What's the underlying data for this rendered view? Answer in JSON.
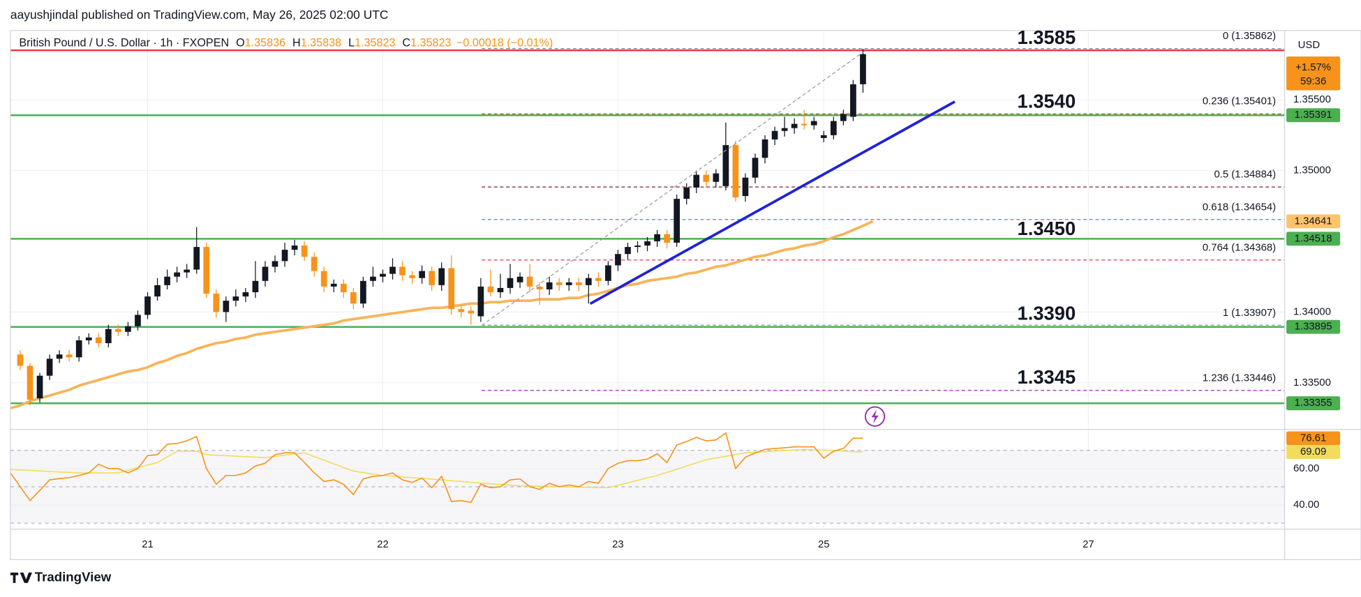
{
  "header": {
    "publisher": "aayushjindal published on TradingView.com, May 26, 2025 02:00 UTC"
  },
  "branding": "TradingView",
  "chart_data": {
    "type": "candlestick",
    "legend": {
      "symbol": "British Pound / U.S. Dollar · 1h · FXOPEN",
      "fields": [
        {
          "key": "O",
          "value": "1.35836"
        },
        {
          "key": "H",
          "value": "1.35838"
        },
        {
          "key": "L",
          "value": "1.35823"
        },
        {
          "key": "C",
          "value": "1.35823"
        }
      ],
      "change": "−0.00018 (−0.01%)"
    },
    "currency": "USD",
    "categories": [
      null,
      null,
      null,
      null,
      null,
      null,
      null,
      null,
      null,
      null,
      null,
      null,
      null,
      null,
      "21",
      null,
      null,
      null,
      null,
      null,
      null,
      null,
      null,
      null,
      null,
      null,
      null,
      null,
      null,
      null,
      null,
      null,
      null,
      null,
      null,
      null,
      null,
      null,
      "22",
      null,
      null,
      null,
      null,
      null,
      null,
      null,
      null,
      null,
      null,
      null,
      null,
      null,
      null,
      null,
      null,
      null,
      null,
      null,
      null,
      null,
      null,
      null,
      "23",
      null,
      null,
      null,
      null,
      null,
      null,
      null,
      null,
      null,
      null,
      null,
      null,
      null,
      null,
      null,
      null,
      null,
      null,
      null,
      null,
      "25",
      null,
      null,
      null,
      null,
      null,
      null,
      null,
      null,
      null,
      null,
      null,
      null,
      null,
      null,
      null,
      null,
      null,
      null,
      null,
      null,
      null,
      null,
      null,
      null,
      null,
      null,
      "27"
    ],
    "ohlc": [
      null,
      [
        1.337,
        1.3373,
        1.3359,
        1.3362
      ],
      [
        1.3362,
        1.3364,
        1.3334,
        1.3338
      ],
      [
        1.3339,
        1.3357,
        1.3336,
        1.3355
      ],
      [
        1.3355,
        1.337,
        1.3352,
        1.3367
      ],
      [
        1.3367,
        1.3373,
        1.3364,
        1.337
      ],
      [
        1.337,
        1.3373,
        1.3365,
        1.3368
      ],
      [
        1.3368,
        1.3383,
        1.3365,
        1.338
      ],
      [
        1.338,
        1.3385,
        1.3377,
        1.3382
      ],
      [
        1.3382,
        1.3385,
        1.3375,
        1.3378
      ],
      [
        1.3378,
        1.3391,
        1.3375,
        1.3388
      ],
      [
        1.3388,
        1.3391,
        1.3383,
        1.3386
      ],
      [
        1.3386,
        1.3393,
        1.3383,
        1.339
      ],
      [
        1.339,
        1.3401,
        1.3387,
        1.3398
      ],
      [
        1.3398,
        1.3414,
        1.3395,
        1.3411
      ],
      [
        1.3411,
        1.3424,
        1.3408,
        1.3419
      ],
      [
        1.3419,
        1.343,
        1.3416,
        1.3425
      ],
      [
        1.3425,
        1.3432,
        1.3421,
        1.3428
      ],
      [
        1.3428,
        1.3434,
        1.3424,
        1.343
      ],
      [
        1.343,
        1.346,
        1.3427,
        1.3446
      ],
      [
        1.3446,
        1.3449,
        1.341,
        1.3413
      ],
      [
        1.3413,
        1.3416,
        1.3396,
        1.34
      ],
      [
        1.34,
        1.3411,
        1.3393,
        1.3408
      ],
      [
        1.3408,
        1.3416,
        1.3404,
        1.3411
      ],
      [
        1.3411,
        1.3417,
        1.3407,
        1.3414
      ],
      [
        1.3414,
        1.3436,
        1.341,
        1.3422
      ],
      [
        1.3422,
        1.3436,
        1.3418,
        1.3432
      ],
      [
        1.3432,
        1.344,
        1.3428,
        1.3436
      ],
      [
        1.3436,
        1.3449,
        1.3432,
        1.3444
      ],
      [
        1.3444,
        1.3451,
        1.344,
        1.3447
      ],
      [
        1.3447,
        1.345,
        1.3436,
        1.3439
      ],
      [
        1.3439,
        1.3442,
        1.3425,
        1.3429
      ],
      [
        1.3429,
        1.3432,
        1.3414,
        1.3418
      ],
      [
        1.3418,
        1.3423,
        1.3414,
        1.342
      ],
      [
        1.342,
        1.3423,
        1.341,
        1.3414
      ],
      [
        1.3414,
        1.3417,
        1.3402,
        1.3406
      ],
      [
        1.3406,
        1.3425,
        1.3403,
        1.3422
      ],
      [
        1.3422,
        1.3432,
        1.3418,
        1.3425
      ],
      [
        1.3425,
        1.343,
        1.3421,
        1.3427
      ],
      [
        1.3427,
        1.3438,
        1.3423,
        1.3432
      ],
      [
        1.3432,
        1.3436,
        1.3422,
        1.3426
      ],
      [
        1.3426,
        1.3429,
        1.342,
        1.3424
      ],
      [
        1.3424,
        1.3433,
        1.342,
        1.3429
      ],
      [
        1.3429,
        1.3432,
        1.3415,
        1.3419
      ],
      [
        1.3419,
        1.3435,
        1.3415,
        1.3431
      ],
      [
        1.3431,
        1.344,
        1.3398,
        1.3402
      ],
      [
        1.3402,
        1.3405,
        1.3396,
        1.34
      ],
      [
        1.3401,
        1.3404,
        1.3391,
        1.3399
      ],
      [
        1.3397,
        1.3424,
        1.3393,
        1.3418
      ],
      [
        1.3418,
        1.343,
        1.3411,
        1.3414
      ],
      [
        1.3414,
        1.3427,
        1.341,
        1.3417
      ],
      [
        1.3417,
        1.3434,
        1.3413,
        1.3424
      ],
      [
        1.3421,
        1.3428,
        1.3417,
        1.3425
      ],
      [
        1.3425,
        1.3434,
        1.3414,
        1.3418
      ],
      [
        1.3418,
        1.3421,
        1.3405,
        1.3416
      ],
      [
        1.3416,
        1.3425,
        1.3412,
        1.3421
      ],
      [
        1.3421,
        1.3424,
        1.3415,
        1.3419
      ],
      [
        1.3419,
        1.3424,
        1.3415,
        1.3421
      ],
      [
        1.3421,
        1.3424,
        1.3415,
        1.3419
      ],
      [
        1.3419,
        1.3427,
        1.3406,
        1.3424
      ],
      [
        1.3424,
        1.3428,
        1.3418,
        1.3422
      ],
      [
        1.3422,
        1.3436,
        1.3419,
        1.3433
      ],
      [
        1.3433,
        1.3444,
        1.3429,
        1.3441
      ],
      [
        1.3441,
        1.3449,
        1.3437,
        1.3446
      ],
      [
        1.3446,
        1.345,
        1.3442,
        1.3447
      ],
      [
        1.3447,
        1.3453,
        1.3443,
        1.345
      ],
      [
        1.345,
        1.3458,
        1.3446,
        1.3455
      ],
      [
        1.3455,
        1.3458,
        1.3445,
        1.3449
      ],
      [
        1.3449,
        1.3483,
        1.3446,
        1.348
      ],
      [
        1.348,
        1.3491,
        1.3476,
        1.3488
      ],
      [
        1.3488,
        1.35,
        1.3484,
        1.3497
      ],
      [
        1.3497,
        1.35,
        1.3488,
        1.3492
      ],
      [
        1.3492,
        1.3501,
        1.3488,
        1.3498
      ],
      [
        1.3489,
        1.3534,
        1.3486,
        1.3518
      ],
      [
        1.3518,
        1.3521,
        1.3478,
        1.3481
      ],
      [
        1.3482,
        1.3498,
        1.3478,
        1.3495
      ],
      [
        1.3495,
        1.3512,
        1.3491,
        1.3509
      ],
      [
        1.3509,
        1.3525,
        1.3505,
        1.3522
      ],
      [
        1.3522,
        1.3531,
        1.3518,
        1.3528
      ],
      [
        1.3528,
        1.3538,
        1.3524,
        1.353
      ],
      [
        1.353,
        1.3537,
        1.3526,
        1.3533
      ],
      [
        1.3533,
        1.3543,
        1.3529,
        1.3532
      ],
      [
        1.3532,
        1.3538,
        1.3529,
        1.3535
      ],
      [
        1.3523,
        1.3528,
        1.352,
        1.3525
      ],
      [
        1.3525,
        1.3538,
        1.3522,
        1.3535
      ],
      [
        1.3535,
        1.3543,
        1.3532,
        1.354
      ],
      [
        1.3538,
        1.3564,
        1.3535,
        1.3561
      ],
      [
        1.3561,
        1.3586,
        1.3555,
        1.35823
      ],
      null,
      null,
      null,
      null,
      null,
      null,
      null,
      null,
      null,
      null,
      null,
      null,
      null,
      null,
      null,
      null,
      null,
      null,
      null,
      null,
      null,
      null,
      null
    ],
    "up_color": "#131722",
    "down_color": "#f7931a",
    "ylim": [
      1.3317,
      1.3599
    ],
    "yticks": [
      {
        "value": 1.355,
        "label": "1.35500"
      },
      {
        "value": 1.35,
        "label": "1.35000"
      },
      {
        "value": 1.34,
        "label": "1.34000"
      },
      {
        "value": 1.335,
        "label": "1.33500"
      }
    ],
    "grid": true,
    "moving_average": {
      "color": "#f7b45a",
      "values": [
        1.3332,
        1.3334,
        1.3337,
        1.3339,
        1.3341,
        1.3343,
        1.3345,
        1.3348,
        1.335,
        1.3352,
        1.3354,
        1.3356,
        1.3358,
        1.3359,
        1.3361,
        1.3364,
        1.3366,
        1.3369,
        1.3371,
        1.3374,
        1.3376,
        1.3378,
        1.3379,
        1.3381,
        1.3382,
        1.3384,
        1.3385,
        1.3386,
        1.3387,
        1.3388,
        1.3389,
        1.339,
        1.3391,
        1.3392,
        1.3394,
        1.3395,
        1.3396,
        1.3397,
        1.3398,
        1.3399,
        1.34,
        1.3401,
        1.3402,
        1.3403,
        1.3403,
        1.3404,
        1.3405,
        1.3406,
        1.3406,
        1.3407,
        1.3407,
        1.3408,
        1.3408,
        1.3408,
        1.3409,
        1.3409,
        1.3409,
        1.341,
        1.341,
        1.3412,
        1.3413,
        1.3415,
        1.3417,
        1.3419,
        1.342,
        1.3422,
        1.3423,
        1.3424,
        1.3425,
        1.3427,
        1.3428,
        1.343,
        1.3432,
        1.3433,
        1.3435,
        1.3437,
        1.3439,
        1.344,
        1.3442,
        1.3444,
        1.3445,
        1.3447,
        1.3448,
        1.345,
        1.3453,
        1.3455,
        1.3458,
        1.3461,
        1.34641,
        null,
        null,
        null,
        null,
        null,
        null,
        null,
        null,
        null,
        null,
        null,
        null,
        null,
        null,
        null,
        null,
        null,
        null,
        null,
        null,
        null,
        null
      ]
    },
    "support_resistance": {
      "color": "#4caf50",
      "values": [
        1.35391,
        1.34518,
        1.33895,
        1.33355
      ]
    },
    "key_levels": [
      {
        "value": 1.3585,
        "label": "1.3585",
        "line": "#f23645"
      },
      {
        "value": 1.354,
        "label": "1.3540"
      },
      {
        "value": 1.345,
        "label": "1.3450"
      },
      {
        "value": 1.339,
        "label": "1.3390"
      },
      {
        "value": 1.3345,
        "label": "1.3345"
      }
    ],
    "key_level_color": "#f7931a",
    "fibonacci": {
      "levels": [
        {
          "value": 1.35862,
          "label": "0 (1.35862)",
          "color": "#787b86"
        },
        {
          "value": 1.35401,
          "label": "0.236 (1.35401)",
          "color": "#f23645"
        },
        {
          "value": 1.34884,
          "label": "0.5 (1.34884)",
          "color": "#7b1f3a"
        },
        {
          "value": 1.34654,
          "label": "0.618 (1.34654)",
          "color": "#22ab94"
        },
        {
          "value": 1.34368,
          "label": "0.764 (1.34368)",
          "color": "#f23645"
        },
        {
          "value": 1.33907,
          "label": "1 (1.33907)",
          "color": "#5fa8d3"
        },
        {
          "value": 1.33446,
          "label": "1.236 (1.33446)",
          "color": "#9c27b0"
        }
      ]
    },
    "price_tag": {
      "change": "+1.57%",
      "countdown": "59:36",
      "color": "#f7931a"
    },
    "rsi": {
      "color": "#f7931a",
      "signal_color": "#f2dc5d",
      "ylim": [
        26.7,
        80.5
      ],
      "yticks": [
        {
          "value": 60,
          "label": "60.00"
        },
        {
          "value": 40,
          "label": "40.00"
        }
      ],
      "levels": [
        70,
        50,
        30
      ],
      "values": [
        57.6,
        50,
        42.4,
        48,
        53.8,
        54.5,
        55,
        56.2,
        57.6,
        62.4,
        60,
        60,
        57.6,
        60,
        67.1,
        67.6,
        73.3,
        73.8,
        75.2,
        77.6,
        60,
        51.4,
        56.2,
        56.2,
        57.6,
        61.4,
        62.9,
        67.6,
        68.6,
        68.6,
        63.3,
        57.6,
        52.9,
        53.8,
        51.4,
        45.7,
        54.3,
        55.7,
        56.2,
        57.6,
        53.8,
        52.4,
        54.8,
        49.5,
        55.7,
        41.9,
        42.4,
        41.4,
        51.4,
        49.5,
        50,
        53.8,
        54.3,
        50,
        48.6,
        51.9,
        50,
        51,
        50,
        52.9,
        51.9,
        60,
        62.9,
        64.3,
        64.3,
        65.2,
        68.1,
        63.3,
        72.9,
        74.8,
        77.1,
        75.2,
        75.7,
        79.5,
        60,
        66.2,
        68.6,
        70.5,
        71,
        71.4,
        71.9,
        71.9,
        71.9,
        65.7,
        69.5,
        71,
        76.7,
        76.61,
        null,
        null,
        null,
        null,
        null,
        null,
        null,
        null,
        null,
        null,
        null,
        null,
        null,
        null,
        null,
        null,
        null,
        null,
        null,
        null,
        null,
        null,
        null
      ],
      "signal": [
        59.5,
        59.2,
        59,
        58.7,
        58.4,
        58.1,
        57.9,
        57.6,
        57.6,
        57.6,
        57.6,
        57.6,
        59,
        60.5,
        61.9,
        63.3,
        66.4,
        69.5,
        69.5,
        69.5,
        67.6,
        67.3,
        67.1,
        66.8,
        66.5,
        66.3,
        66,
        66.7,
        67.3,
        68,
        68.6,
        66.6,
        64.6,
        62.6,
        60.6,
        58.6,
        57.8,
        57,
        56.2,
        55.8,
        55.4,
        55,
        54.6,
        54.2,
        53.8,
        53.3,
        52.9,
        52.4,
        52,
        51.6,
        51.3,
        50.9,
        50.5,
        50.4,
        50.3,
        50.2,
        50.1,
        49.9,
        49.8,
        49.7,
        49.6,
        49.5,
        50.8,
        52.2,
        53.5,
        54.9,
        56.2,
        57.9,
        59.6,
        61.4,
        63.1,
        64.8,
        65.8,
        66.7,
        67.7,
        68.6,
        68.9,
        69.2,
        69.6,
        69.9,
        70.2,
        70.5,
        70.3,
        70.1,
        69.9,
        69.6,
        69.3,
        69.09,
        null,
        null,
        null,
        null,
        null,
        null,
        null,
        null,
        null,
        null,
        null,
        null,
        null,
        null,
        null,
        null,
        null,
        null,
        null,
        null,
        null,
        null,
        null
      ]
    }
  }
}
